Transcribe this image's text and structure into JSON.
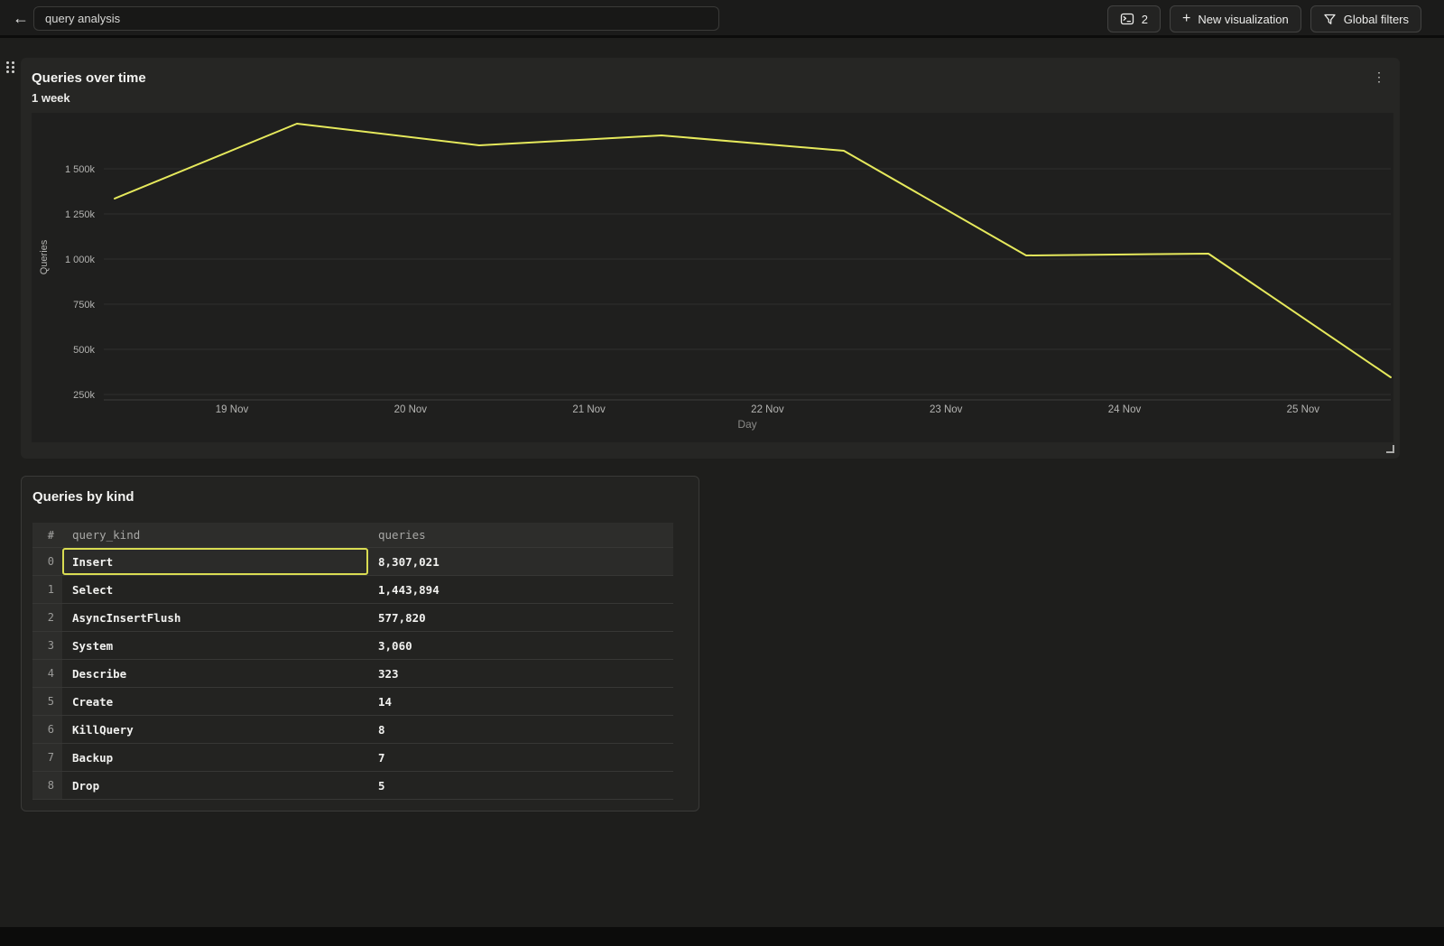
{
  "header": {
    "title_value": "query analysis",
    "buttons": {
      "panels_count": "2",
      "new_visualization": "New visualization",
      "global_filters": "Global filters"
    },
    "icons": {
      "back_icon": "←",
      "panels_icon": "console-window",
      "plus_icon": "+",
      "filter_icon": "funnel"
    }
  },
  "chart_card": {
    "title": "Queries over time",
    "subtitle": "1 week",
    "icons": {
      "kebab_icon": "⋮",
      "drag_icon": "grip-dots",
      "resize_icon": "corner-bracket"
    }
  },
  "chart_data": {
    "type": "line",
    "title": "Queries over time",
    "subtitle": "1 week",
    "series": [
      {
        "name": "Queries",
        "values": [
          1335000,
          1750000,
          1630000,
          1685000,
          1600000,
          1020000,
          1030000,
          345000
        ]
      }
    ],
    "x_axis": {
      "label": "Day",
      "ticks": [
        "19 Nov",
        "20 Nov",
        "21 Nov",
        "22 Nov",
        "23 Nov",
        "24 Nov",
        "25 Nov"
      ]
    },
    "y_axis": {
      "label": "Queries",
      "ticks": [
        {
          "label": "250k",
          "value": 250000
        },
        {
          "label": "500k",
          "value": 500000
        },
        {
          "label": "750k",
          "value": 750000
        },
        {
          "label": "1 000k",
          "value": 1000000
        },
        {
          "label": "1 250k",
          "value": 1250000
        },
        {
          "label": "1 500k",
          "value": 1500000
        }
      ],
      "ylim": [
        220000,
        1785000
      ]
    },
    "grid": true,
    "legend": "none",
    "line_color": "#e6e95c"
  },
  "table_card": {
    "title": "Queries by kind",
    "columns": [
      "#",
      "query_kind",
      "queries"
    ],
    "rows": [
      {
        "index": "0",
        "query_kind": "Insert",
        "queries": "8,307,021"
      },
      {
        "index": "1",
        "query_kind": "Select",
        "queries": "1,443,894"
      },
      {
        "index": "2",
        "query_kind": "AsyncInsertFlush",
        "queries": "577,820"
      },
      {
        "index": "3",
        "query_kind": "System",
        "queries": "3,060"
      },
      {
        "index": "4",
        "query_kind": "Describe",
        "queries": "323"
      },
      {
        "index": "5",
        "query_kind": "Create",
        "queries": "14"
      },
      {
        "index": "6",
        "query_kind": "KillQuery",
        "queries": "8"
      },
      {
        "index": "7",
        "query_kind": "Backup",
        "queries": "7"
      },
      {
        "index": "8",
        "query_kind": "Drop",
        "queries": "5"
      }
    ],
    "selected": {
      "row": 0,
      "column": "query_kind"
    }
  },
  "colors": {
    "accent_yellow": "#e6e95c",
    "selection_yellow": "#d9dc52",
    "gridline": "#2f2f2d",
    "axis_line": "#3e3e3c",
    "tick_text": "#b4b4b2",
    "axis_title": "#8a8a88",
    "card_bg": "#262624",
    "page_bg": "#1e1e1c"
  }
}
